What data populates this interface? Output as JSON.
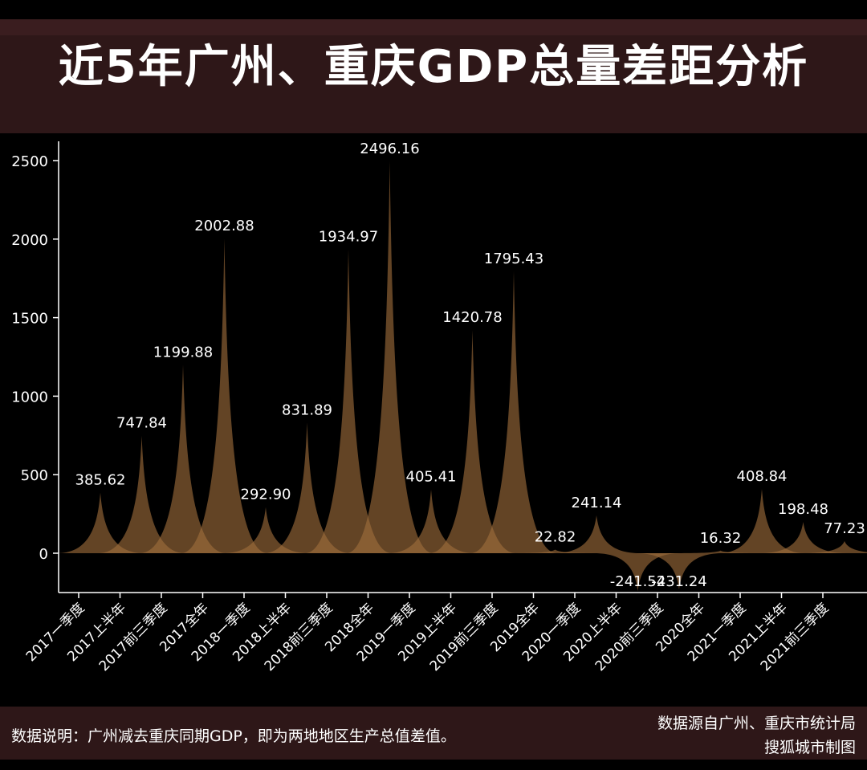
{
  "title": "近5年广州、重庆GDP总量差距分析",
  "footer": {
    "note": "数据说明：广州减去重庆同期GDP，即为两地地区生产总值差值。",
    "source_line1": "数据源自广州、重庆市统计局",
    "source_line2": "搜狐城市制图"
  },
  "colors": {
    "background": "#000000",
    "header": "#2e1718",
    "peak_fill": "#a06e3c",
    "text": "#ffffff"
  },
  "chart_data": {
    "type": "area",
    "title": "近5年广州、重庆GDP总量差距分析",
    "xlabel": "",
    "ylabel": "",
    "ylim": [
      -300,
      2550
    ],
    "yticks": [
      0,
      500,
      1000,
      1500,
      2000,
      2500
    ],
    "grid": false,
    "legend": "none",
    "categories": [
      "2017一季度",
      "2017上半年",
      "2017前三季度",
      "2017全年",
      "2018一季度",
      "2018上半年",
      "2018前三季度",
      "2018全年",
      "2019一季度",
      "2019上半年",
      "2019前三季度",
      "2019全年",
      "2020一季度",
      "2020上半年",
      "2020前三季度",
      "2020全年",
      "2021一季度",
      "2021上半年",
      "2021前三季度"
    ],
    "values": [
      385.62,
      747.84,
      1199.88,
      2002.88,
      292.9,
      831.89,
      1934.97,
      2496.16,
      405.41,
      1420.78,
      1795.43,
      22.82,
      241.14,
      -241.54,
      -231.24,
      16.32,
      408.84,
      198.48,
      77.23
    ],
    "value_labels": [
      "385.62",
      "747.84",
      "1199.88",
      "2002.88",
      "292.90",
      "831.89",
      "1934.97",
      "2496.16",
      "405.41",
      "1420.78",
      "1795.43",
      "22.82",
      "241.14",
      "-241.54",
      "-231.24",
      "16.32",
      "408.84",
      "198.48",
      "77.23"
    ]
  }
}
